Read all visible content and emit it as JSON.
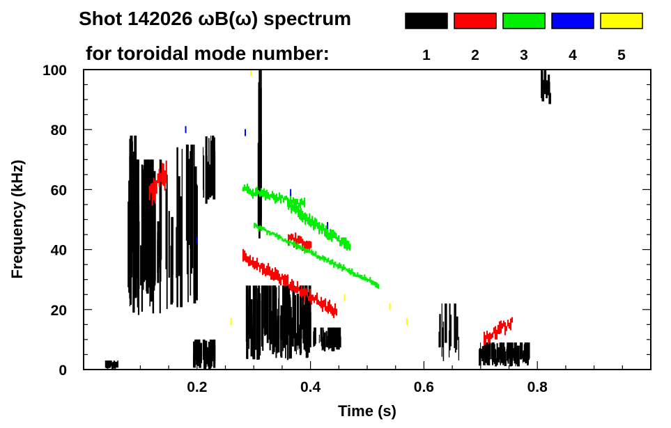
{
  "chart_data": {
    "type": "scatter",
    "title_line1": "Shot 142026 ωB(ω) spectrum",
    "title_line2": "for toroidal mode number:",
    "xlabel": "Time (s)",
    "ylabel": "Frequency (kHz)",
    "xlim": [
      0.0,
      1.0
    ],
    "ylim": [
      0,
      100
    ],
    "x_ticks": [
      0.2,
      0.4,
      0.6,
      0.8
    ],
    "x_tick_labels": [
      "0.2",
      "0.4",
      "0.6",
      "0.8"
    ],
    "y_ticks": [
      0,
      20,
      40,
      60,
      80,
      100
    ],
    "y_tick_labels": [
      "0",
      "20",
      "40",
      "60",
      "80",
      "100"
    ],
    "legend_placement": "top",
    "legend": [
      {
        "label": "1",
        "color": "#000000"
      },
      {
        "label": "2",
        "color": "#ff0000"
      },
      {
        "label": "3",
        "color": "#00ee00"
      },
      {
        "label": "4",
        "color": "#0000ff"
      },
      {
        "label": "5",
        "color": "#ffff00"
      }
    ],
    "series": [
      {
        "mode": "1",
        "color": "#000000",
        "regions": [
          {
            "t0": 0.035,
            "t1": 0.06,
            "f0": 0,
            "f1": 3,
            "density": 0.6
          },
          {
            "t0": 0.075,
            "t1": 0.135,
            "f0": 18,
            "f1": 70,
            "density": 0.85
          },
          {
            "t0": 0.08,
            "t1": 0.095,
            "f0": 60,
            "f1": 78,
            "density": 0.6
          },
          {
            "t0": 0.135,
            "t1": 0.2,
            "f0": 20,
            "f1": 75,
            "density": 0.3
          },
          {
            "t0": 0.19,
            "t1": 0.23,
            "f0": 0,
            "f1": 10,
            "density": 0.85
          },
          {
            "t0": 0.21,
            "t1": 0.23,
            "f0": 55,
            "f1": 78,
            "density": 0.7
          },
          {
            "t0": 0.285,
            "t1": 0.4,
            "f0": 3,
            "f1": 28,
            "density": 0.9
          },
          {
            "t0": 0.4,
            "t1": 0.45,
            "f0": 6,
            "f1": 14,
            "density": 0.7
          },
          {
            "t0": 0.305,
            "t1": 0.315,
            "f0": 40,
            "f1": 100,
            "density": 0.6
          },
          {
            "t0": 0.695,
            "t1": 0.785,
            "f0": 1,
            "f1": 9,
            "density": 0.9
          },
          {
            "t0": 0.805,
            "t1": 0.82,
            "f0": 88,
            "f1": 100,
            "density": 0.7
          },
          {
            "t0": 0.62,
            "t1": 0.665,
            "f0": 2,
            "f1": 22,
            "density": 0.25
          }
        ]
      },
      {
        "mode": "2",
        "color": "#ff0000",
        "ridges": [
          {
            "t0": 0.115,
            "t1": 0.145,
            "f0": 59,
            "f1": 65,
            "width": 5
          },
          {
            "t0": 0.28,
            "t1": 0.445,
            "f0": 38,
            "f1": 19,
            "width": 2.5
          },
          {
            "t0": 0.36,
            "t1": 0.4,
            "f0": 44,
            "f1": 41,
            "width": 2.5
          },
          {
            "t0": 0.705,
            "t1": 0.755,
            "f0": 10,
            "f1": 16,
            "width": 3
          }
        ]
      },
      {
        "mode": "3",
        "color": "#00ee00",
        "ridges": [
          {
            "t0": 0.28,
            "t1": 0.39,
            "f0": 60,
            "f1": 55,
            "width": 2
          },
          {
            "t0": 0.36,
            "t1": 0.47,
            "f0": 55,
            "f1": 40,
            "width": 2.5
          },
          {
            "t0": 0.3,
            "t1": 0.52,
            "f0": 48,
            "f1": 28,
            "width": 1.2
          }
        ]
      },
      {
        "mode": "4",
        "color": "#0000ff",
        "points": [
          [
            0.18,
            80
          ],
          [
            0.285,
            79
          ],
          [
            0.365,
            59
          ],
          [
            0.43,
            48
          ],
          [
            0.2,
            43
          ]
        ]
      },
      {
        "mode": "5",
        "color": "#ffff00",
        "points": [
          [
            0.26,
            16
          ],
          [
            0.295,
            99
          ],
          [
            0.46,
            24
          ],
          [
            0.54,
            21
          ],
          [
            0.57,
            16
          ]
        ]
      }
    ]
  }
}
